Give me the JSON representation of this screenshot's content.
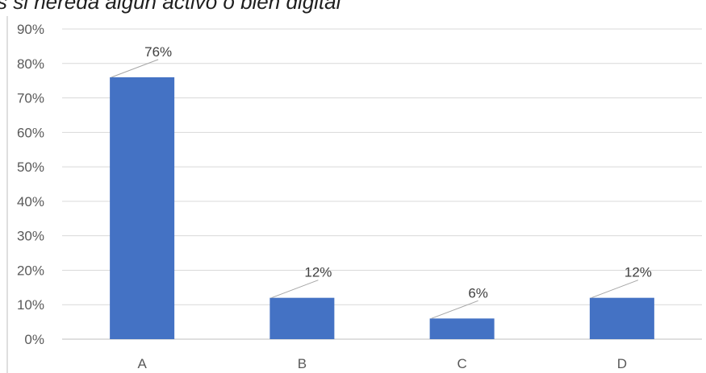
{
  "chart_data": {
    "type": "bar",
    "title": "s si hereda algún activo o bien digital",
    "xlabel": "",
    "ylabel": "",
    "categories": [
      "A",
      "B",
      "C",
      "D"
    ],
    "values": [
      0.76,
      0.12,
      0.06,
      0.12
    ],
    "data_labels": [
      "76%",
      "12%",
      "6%",
      "12%"
    ],
    "y_ticks": [
      "0%",
      "10%",
      "20%",
      "30%",
      "40%",
      "50%",
      "60%",
      "70%",
      "80%",
      "90%"
    ],
    "ylim": [
      0,
      0.9
    ],
    "grid": true,
    "legend": "none",
    "bar_color": "#4472C4",
    "grid_color": "#d9d9d9"
  }
}
